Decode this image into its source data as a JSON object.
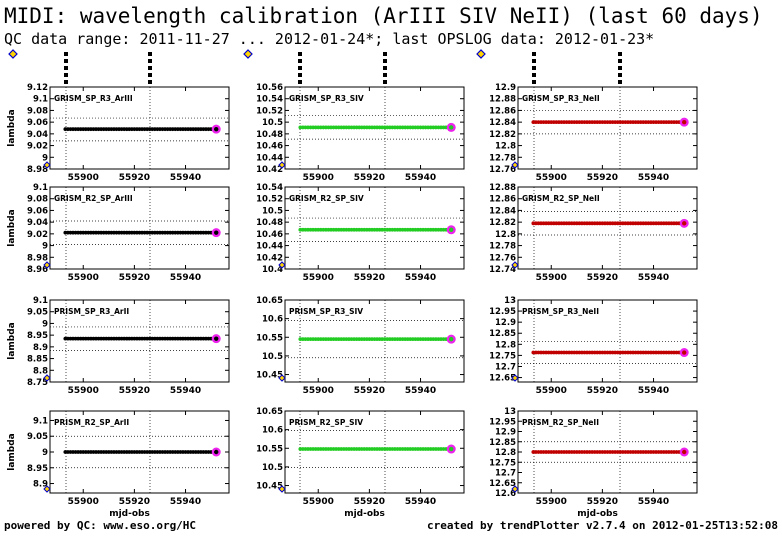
{
  "header": {
    "title": "MIDI: wavelength calibration (ArIII SIV NeII) (last 60 days)",
    "subtitle": "QC data range: 2011-11-27 ... 2012-01-24*; last OPSLOG data: 2012-01-23*"
  },
  "footer": {
    "left": "powered by QC: www.eso.org/HC",
    "right": "created by trendPlotter v2.7.4 on 2012-01-25T13:52:08"
  },
  "axis_labels": {
    "y": "lambda",
    "x": "mjd-obs"
  },
  "colors": {
    "ArIII": "#000000",
    "SIV": "#22cc22",
    "NeII": "#c00000",
    "last_point": "#ee22ee",
    "marker_diamond": "#0000cc",
    "marker_fill": "#ffd400"
  },
  "chart_data": [
    {
      "type": "scatter",
      "label": "GRISM_SP_R3_ArIII",
      "series": "ArIII",
      "ylim": [
        8.98,
        9.12
      ],
      "yticks": [
        "9.12",
        "9.1",
        "9.08",
        "9.06",
        "9.04",
        "9.02",
        "9",
        "8.98"
      ],
      "ytick_values": [
        9.12,
        9.1,
        9.08,
        9.06,
        9.04,
        9.02,
        9.0,
        8.98
      ],
      "xlim": [
        55887,
        55957
      ],
      "xticks": [
        55900,
        55920,
        55940
      ],
      "x_range": [
        55893,
        55952
      ],
      "value": 9.048,
      "ref_lines": [
        9.067,
        9.028
      ],
      "show_xlabel": false
    },
    {
      "type": "scatter",
      "label": "GRISM_SP_R3_SIV",
      "series": "SIV",
      "ylim": [
        10.42,
        10.56
      ],
      "yticks": [
        "10.56",
        "10.54",
        "10.52",
        "10.5",
        "10.48",
        "10.46",
        "10.44",
        "10.42"
      ],
      "ytick_values": [
        10.56,
        10.54,
        10.52,
        10.5,
        10.48,
        10.46,
        10.44,
        10.42
      ],
      "xlim": [
        55887,
        55957
      ],
      "xticks": [
        55900,
        55920,
        55940
      ],
      "x_range": [
        55893,
        55952
      ],
      "value": 10.491,
      "ref_lines": [
        10.511,
        10.471
      ],
      "show_xlabel": false
    },
    {
      "type": "scatter",
      "label": "GRISM_SP_R3_NeII",
      "series": "NeII",
      "ylim": [
        12.76,
        12.9
      ],
      "yticks": [
        "12.9",
        "12.88",
        "12.86",
        "12.84",
        "12.82",
        "12.8",
        "12.78",
        "12.76"
      ],
      "ytick_values": [
        12.9,
        12.88,
        12.86,
        12.84,
        12.82,
        12.8,
        12.78,
        12.76
      ],
      "xlim": [
        55887,
        55957
      ],
      "xticks": [
        55900,
        55920,
        55940
      ],
      "x_range": [
        55893,
        55952
      ],
      "value": 12.84,
      "ref_lines": [
        12.86,
        12.82
      ],
      "show_xlabel": false
    },
    {
      "type": "scatter",
      "label": "GRISM_R2_SP_ArIII",
      "series": "ArIII",
      "ylim": [
        8.96,
        9.1
      ],
      "yticks": [
        "9.1",
        "9.08",
        "9.06",
        "9.04",
        "9.02",
        "9",
        "8.98",
        "8.96"
      ],
      "ytick_values": [
        9.1,
        9.08,
        9.06,
        9.04,
        9.02,
        9.0,
        8.98,
        8.96
      ],
      "xlim": [
        55887,
        55957
      ],
      "xticks": [
        55900,
        55920,
        55940
      ],
      "x_range": [
        55893,
        55952
      ],
      "value": 9.022,
      "ref_lines": [
        9.042,
        9.002
      ],
      "show_xlabel": false
    },
    {
      "type": "scatter",
      "label": "GRISM_R2_SP_SIV",
      "series": "SIV",
      "ylim": [
        10.4,
        10.54
      ],
      "yticks": [
        "10.54",
        "10.52",
        "10.5",
        "10.48",
        "10.46",
        "10.44",
        "10.42",
        "10.4"
      ],
      "ytick_values": [
        10.54,
        10.52,
        10.5,
        10.48,
        10.46,
        10.44,
        10.42,
        10.4
      ],
      "xlim": [
        55887,
        55957
      ],
      "xticks": [
        55900,
        55920,
        55940
      ],
      "x_range": [
        55893,
        55952
      ],
      "value": 10.467,
      "ref_lines": [
        10.487,
        10.447
      ],
      "show_xlabel": false
    },
    {
      "type": "scatter",
      "label": "GRISM_R2_SP_NeII",
      "series": "NeII",
      "ylim": [
        12.74,
        12.88
      ],
      "yticks": [
        "12.88",
        "12.86",
        "12.84",
        "12.82",
        "12.8",
        "12.78",
        "12.76",
        "12.74"
      ],
      "ytick_values": [
        12.88,
        12.86,
        12.84,
        12.82,
        12.8,
        12.78,
        12.76,
        12.74
      ],
      "xlim": [
        55887,
        55957
      ],
      "xticks": [
        55900,
        55920,
        55940
      ],
      "x_range": [
        55893,
        55952
      ],
      "value": 12.818,
      "ref_lines": [
        12.838,
        12.798
      ],
      "show_xlabel": false
    },
    {
      "type": "scatter",
      "label": "PRISM_SP_R3_ArII",
      "series": "ArIII",
      "ylim": [
        8.75,
        9.1
      ],
      "yticks": [
        "9.1",
        "9.05",
        "9",
        "8.95",
        "8.9",
        "8.85",
        "8.8",
        "8.75"
      ],
      "ytick_values": [
        9.1,
        9.05,
        9.0,
        8.95,
        8.9,
        8.85,
        8.8,
        8.75
      ],
      "xlim": [
        55887,
        55957
      ],
      "xticks": [
        55900,
        55920,
        55940
      ],
      "x_range": [
        55893,
        55952
      ],
      "value": 8.935,
      "ref_lines": [
        8.985,
        8.885
      ],
      "show_xlabel": false
    },
    {
      "type": "scatter",
      "label": "PRISM_SP_R3_SIV",
      "series": "SIV",
      "ylim": [
        10.43,
        10.65
      ],
      "yticks": [
        "10.65",
        "10.6",
        "10.55",
        "10.5",
        "10.45"
      ],
      "ytick_values": [
        10.65,
        10.6,
        10.55,
        10.5,
        10.45
      ],
      "xlim": [
        55887,
        55957
      ],
      "xticks": [
        55900,
        55920,
        55940
      ],
      "x_range": [
        55893,
        55952
      ],
      "value": 10.545,
      "ref_lines": [
        10.595,
        10.495
      ],
      "show_xlabel": false
    },
    {
      "type": "scatter",
      "label": "PRISM_SP_R3_NeII",
      "series": "NeII",
      "ylim": [
        12.63,
        13.0
      ],
      "yticks": [
        "13",
        "12.95",
        "12.9",
        "12.85",
        "12.8",
        "12.75",
        "12.7",
        "12.65"
      ],
      "ytick_values": [
        13.0,
        12.95,
        12.9,
        12.85,
        12.8,
        12.75,
        12.7,
        12.65
      ],
      "xlim": [
        55887,
        55957
      ],
      "xticks": [
        55900,
        55920,
        55940
      ],
      "x_range": [
        55893,
        55952
      ],
      "value": 12.763,
      "ref_lines": [
        12.813,
        12.713
      ],
      "show_xlabel": false
    },
    {
      "type": "scatter",
      "label": "PRISM_R2_SP_ArII",
      "series": "ArIII",
      "ylim": [
        8.87,
        9.13
      ],
      "yticks": [
        "9.1",
        "9.05",
        "9",
        "8.95",
        "8.9"
      ],
      "ytick_values": [
        9.1,
        9.05,
        9.0,
        8.95,
        8.9
      ],
      "xlim": [
        55887,
        55957
      ],
      "xticks": [
        55900,
        55920,
        55940
      ],
      "x_range": [
        55893,
        55952
      ],
      "value": 9.0,
      "ref_lines": [
        9.05,
        8.95
      ],
      "show_xlabel": true
    },
    {
      "type": "scatter",
      "label": "PRISM_R2_SP_SIV",
      "series": "SIV",
      "ylim": [
        10.43,
        10.65
      ],
      "yticks": [
        "10.65",
        "10.6",
        "10.55",
        "10.5",
        "10.45"
      ],
      "ytick_values": [
        10.65,
        10.6,
        10.55,
        10.5,
        10.45
      ],
      "xlim": [
        55887,
        55957
      ],
      "xticks": [
        55900,
        55920,
        55940
      ],
      "x_range": [
        55893,
        55952
      ],
      "value": 10.548,
      "ref_lines": [
        10.598,
        10.498
      ],
      "show_xlabel": true
    },
    {
      "type": "scatter",
      "label": "PRISM_R2_SP_NeII",
      "series": "NeII",
      "ylim": [
        12.6,
        13.0
      ],
      "yticks": [
        "13",
        "12.95",
        "12.9",
        "12.85",
        "12.8",
        "12.75",
        "12.7",
        "12.65",
        "12.6"
      ],
      "ytick_values": [
        13.0,
        12.95,
        12.9,
        12.85,
        12.8,
        12.75,
        12.7,
        12.65,
        12.6
      ],
      "xlim": [
        55887,
        55957
      ],
      "xticks": [
        55900,
        55920,
        55940
      ],
      "x_range": [
        55893,
        55952
      ],
      "value": 12.8,
      "ref_lines": [
        12.85,
        12.75
      ],
      "show_xlabel": true
    }
  ]
}
